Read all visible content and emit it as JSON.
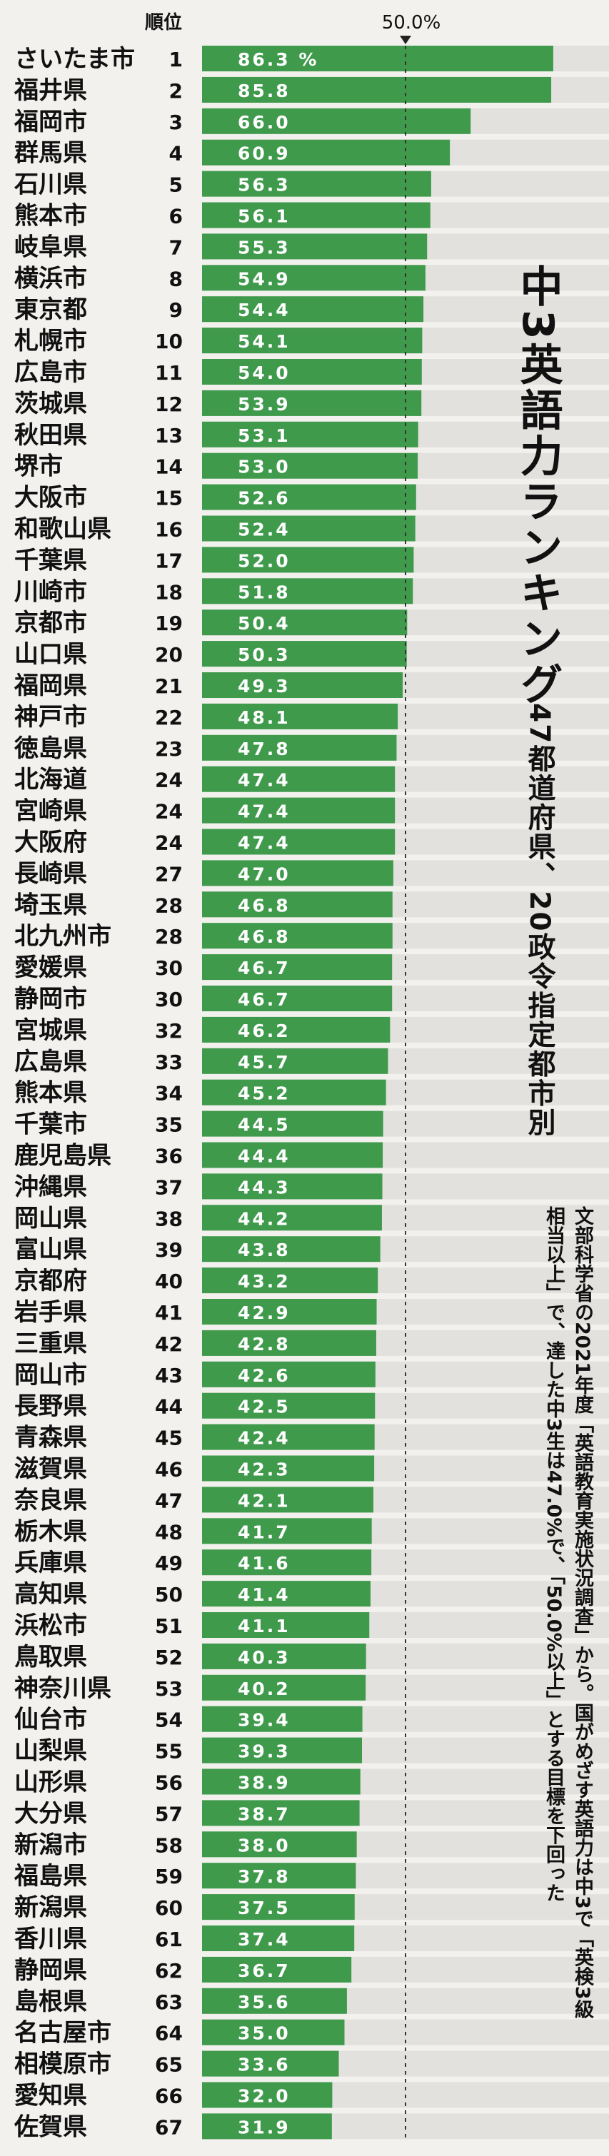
{
  "title": "中3英語力ランキング",
  "subtitle": "47都道府県、20政令指定都市別",
  "note": "文部科学省の2021年度「英語教育実施状況調査」から。国がめざす英語力は中3で「英検3級相当以上」で、達した中3生は47.0%で、「50.0%以上」とする目標を下回った",
  "chart_data": {
    "type": "bar",
    "orientation": "horizontal",
    "rank_header": "順位",
    "reference_line": {
      "value": 50.0,
      "label": "50.0%"
    },
    "value_unit": "%",
    "xlim": [
      0,
      100
    ],
    "bar_color": "#3f9a4c",
    "items": [
      {
        "rank": "1",
        "name": "さいたま市",
        "value": 86.3
      },
      {
        "rank": "2",
        "name": "福井県",
        "value": 85.8
      },
      {
        "rank": "3",
        "name": "福岡市",
        "value": 66.0
      },
      {
        "rank": "4",
        "name": "群馬県",
        "value": 60.9
      },
      {
        "rank": "5",
        "name": "石川県",
        "value": 56.3
      },
      {
        "rank": "6",
        "name": "熊本市",
        "value": 56.1
      },
      {
        "rank": "7",
        "name": "岐阜県",
        "value": 55.3
      },
      {
        "rank": "8",
        "name": "横浜市",
        "value": 54.9
      },
      {
        "rank": "9",
        "name": "東京都",
        "value": 54.4
      },
      {
        "rank": "10",
        "name": "札幌市",
        "value": 54.1
      },
      {
        "rank": "11",
        "name": "広島市",
        "value": 54.0
      },
      {
        "rank": "12",
        "name": "茨城県",
        "value": 53.9
      },
      {
        "rank": "13",
        "name": "秋田県",
        "value": 53.1
      },
      {
        "rank": "14",
        "name": "堺市",
        "value": 53.0
      },
      {
        "rank": "15",
        "name": "大阪市",
        "value": 52.6
      },
      {
        "rank": "16",
        "name": "和歌山県",
        "value": 52.4
      },
      {
        "rank": "17",
        "name": "千葉県",
        "value": 52.0
      },
      {
        "rank": "18",
        "name": "川崎市",
        "value": 51.8
      },
      {
        "rank": "19",
        "name": "京都市",
        "value": 50.4
      },
      {
        "rank": "20",
        "name": "山口県",
        "value": 50.3
      },
      {
        "rank": "21",
        "name": "福岡県",
        "value": 49.3
      },
      {
        "rank": "22",
        "name": "神戸市",
        "value": 48.1
      },
      {
        "rank": "23",
        "name": "徳島県",
        "value": 47.8
      },
      {
        "rank": "24",
        "name": "北海道",
        "value": 47.4
      },
      {
        "rank": "24",
        "name": "宮崎県",
        "value": 47.4
      },
      {
        "rank": "24",
        "name": "大阪府",
        "value": 47.4
      },
      {
        "rank": "27",
        "name": "長崎県",
        "value": 47.0
      },
      {
        "rank": "28",
        "name": "埼玉県",
        "value": 46.8
      },
      {
        "rank": "28",
        "name": "北九州市",
        "value": 46.8
      },
      {
        "rank": "30",
        "name": "愛媛県",
        "value": 46.7
      },
      {
        "rank": "30",
        "name": "静岡市",
        "value": 46.7
      },
      {
        "rank": "32",
        "name": "宮城県",
        "value": 46.2
      },
      {
        "rank": "33",
        "name": "広島県",
        "value": 45.7
      },
      {
        "rank": "34",
        "name": "熊本県",
        "value": 45.2
      },
      {
        "rank": "35",
        "name": "千葉市",
        "value": 44.5
      },
      {
        "rank": "36",
        "name": "鹿児島県",
        "value": 44.4
      },
      {
        "rank": "37",
        "name": "沖縄県",
        "value": 44.3
      },
      {
        "rank": "38",
        "name": "岡山県",
        "value": 44.2
      },
      {
        "rank": "39",
        "name": "富山県",
        "value": 43.8
      },
      {
        "rank": "40",
        "name": "京都府",
        "value": 43.2
      },
      {
        "rank": "41",
        "name": "岩手県",
        "value": 42.9
      },
      {
        "rank": "42",
        "name": "三重県",
        "value": 42.8
      },
      {
        "rank": "43",
        "name": "岡山市",
        "value": 42.6
      },
      {
        "rank": "44",
        "name": "長野県",
        "value": 42.5
      },
      {
        "rank": "45",
        "name": "青森県",
        "value": 42.4
      },
      {
        "rank": "46",
        "name": "滋賀県",
        "value": 42.3
      },
      {
        "rank": "47",
        "name": "奈良県",
        "value": 42.1
      },
      {
        "rank": "48",
        "name": "栃木県",
        "value": 41.7
      },
      {
        "rank": "49",
        "name": "兵庫県",
        "value": 41.6
      },
      {
        "rank": "50",
        "name": "高知県",
        "value": 41.4
      },
      {
        "rank": "51",
        "name": "浜松市",
        "value": 41.1
      },
      {
        "rank": "52",
        "name": "鳥取県",
        "value": 40.3
      },
      {
        "rank": "53",
        "name": "神奈川県",
        "value": 40.2
      },
      {
        "rank": "54",
        "name": "仙台市",
        "value": 39.4
      },
      {
        "rank": "55",
        "name": "山梨県",
        "value": 39.3
      },
      {
        "rank": "56",
        "name": "山形県",
        "value": 38.9
      },
      {
        "rank": "57",
        "name": "大分県",
        "value": 38.7
      },
      {
        "rank": "58",
        "name": "新潟市",
        "value": 38.0
      },
      {
        "rank": "59",
        "name": "福島県",
        "value": 37.8
      },
      {
        "rank": "60",
        "name": "新潟県",
        "value": 37.5
      },
      {
        "rank": "61",
        "name": "香川県",
        "value": 37.4
      },
      {
        "rank": "62",
        "name": "静岡県",
        "value": 36.7
      },
      {
        "rank": "63",
        "name": "島根県",
        "value": 35.6
      },
      {
        "rank": "64",
        "name": "名古屋市",
        "value": 35.0
      },
      {
        "rank": "65",
        "name": "相模原市",
        "value": 33.6
      },
      {
        "rank": "66",
        "name": "愛知県",
        "value": 32.0
      },
      {
        "rank": "67",
        "name": "佐賀県",
        "value": 31.9
      }
    ]
  }
}
